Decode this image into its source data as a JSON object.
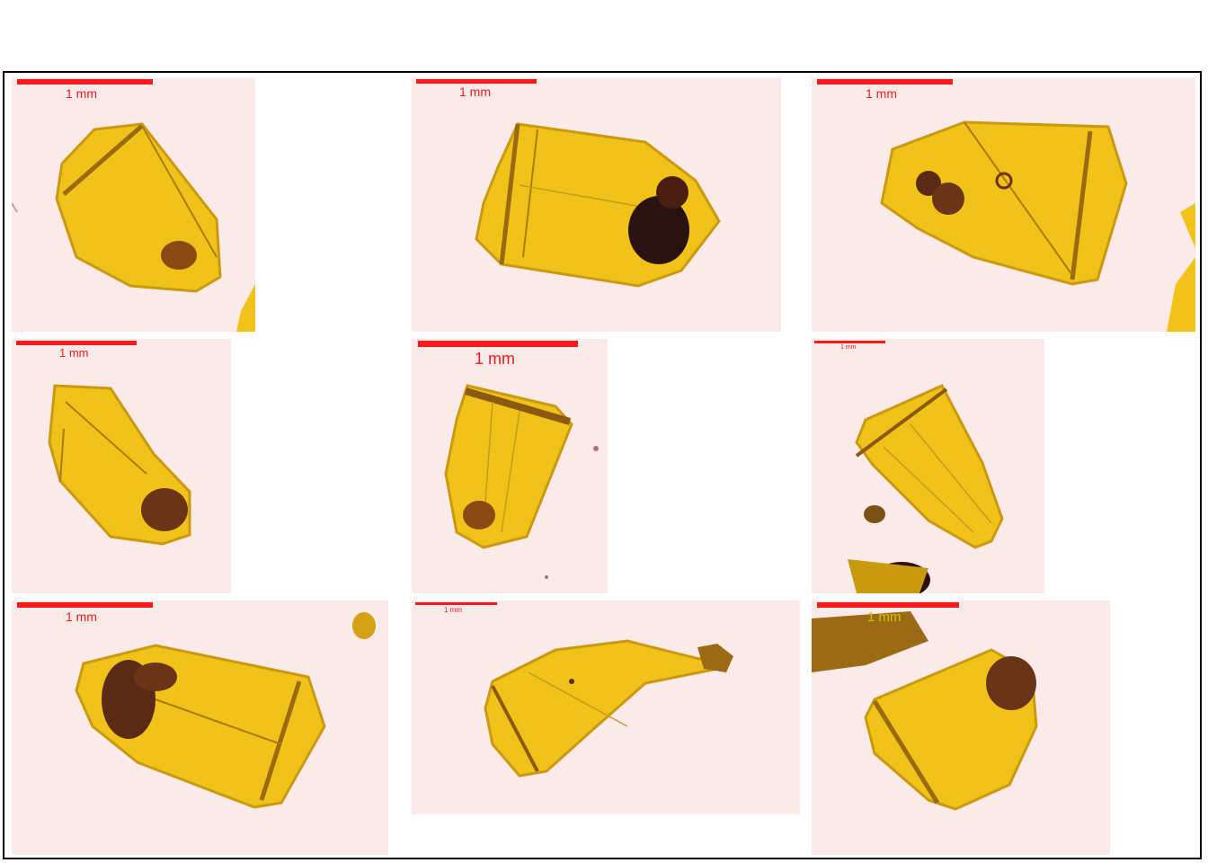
{
  "colors": {
    "background": "#fbeaea",
    "scale_bar": "#ff1a1a",
    "specimen_fill": "#f0c21a",
    "specimen_edge": "#b8860b",
    "inclusion": "#3a1a12"
  },
  "panels": [
    {
      "scale_label": "1 mm"
    },
    {
      "scale_label": "1 mm"
    },
    {
      "scale_label": "1 mm"
    },
    {
      "scale_label": "1 mm"
    },
    {
      "scale_label": "1 mm"
    },
    {
      "scale_label": "1 mm"
    },
    {
      "scale_label": "1 mm"
    },
    {
      "scale_label": "1 mm"
    },
    {
      "scale_label": "1 mm"
    }
  ]
}
